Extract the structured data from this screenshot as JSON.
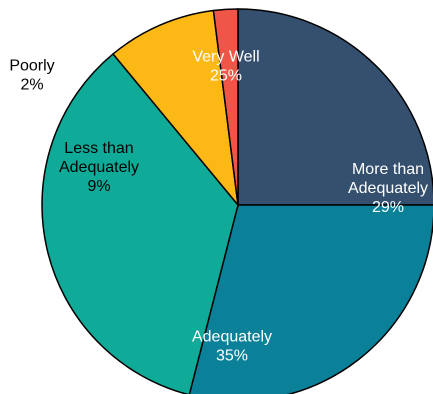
{
  "chart_data": {
    "type": "pie",
    "slices": [
      {
        "label_lines": [
          "Very Well"
        ],
        "value": 25,
        "value_text": "25%",
        "color": "#354f6f",
        "text_color": "#ffffff"
      },
      {
        "label_lines": [
          "More than",
          "Adequately"
        ],
        "value": 29,
        "value_text": "29%",
        "color": "#0b8199",
        "text_color": "#ffffff"
      },
      {
        "label_lines": [
          "Adequately"
        ],
        "value": 35,
        "value_text": "35%",
        "color": "#0faa98",
        "text_color": "#ffffff"
      },
      {
        "label_lines": [
          "Less than",
          "Adequately"
        ],
        "value": 9,
        "value_text": "9%",
        "color": "#fcb815",
        "text_color": "#000000"
      },
      {
        "label_lines": [
          "Poorly"
        ],
        "value": 2,
        "value_text": "2%",
        "color": "#ef5647",
        "text_color": "#000000"
      }
    ],
    "start_angle_deg": 0,
    "direction": "clockwise",
    "slice_border_color": "#000000"
  }
}
